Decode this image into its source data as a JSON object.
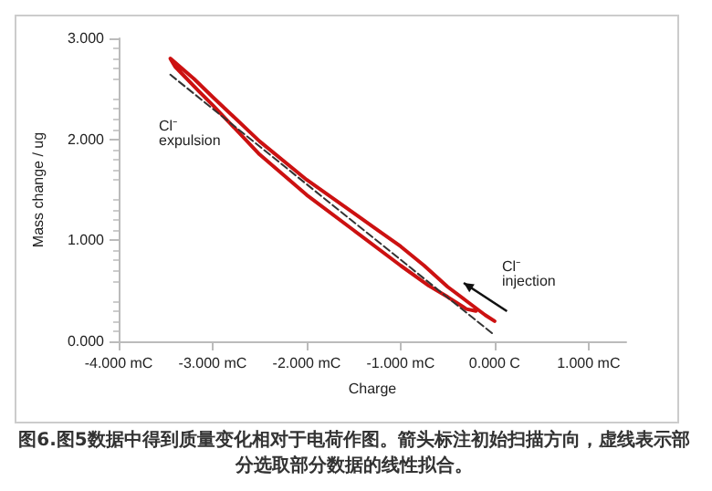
{
  "chart_data": {
    "type": "line",
    "xlabel": "Charge",
    "ylabel": "Mass change / ug",
    "xlim": [
      -4,
      1.4
    ],
    "xticks": [
      {
        "value": -4,
        "label": "-4.000 mC"
      },
      {
        "value": -3,
        "label": "-3.000 mC"
      },
      {
        "value": -2,
        "label": "-2.000 mC"
      },
      {
        "value": -1,
        "label": "-1.000 mC"
      },
      {
        "value": 0,
        "label": "0.000 C"
      },
      {
        "value": 1,
        "label": "1.000 mC"
      }
    ],
    "ylim": [
      0,
      3
    ],
    "yticks": [
      {
        "value": 0,
        "label": "0.000"
      },
      {
        "value": 1,
        "label": "1.000"
      },
      {
        "value": 2,
        "label": "2.000"
      },
      {
        "value": 3,
        "label": "3.000"
      }
    ],
    "marker": "none",
    "series": [
      {
        "color": "#cc1111",
        "line_style": "solid",
        "x": [
          0,
          -0.1,
          -0.3,
          -0.5,
          -0.75,
          -1.0,
          -1.5,
          -2.0,
          -2.5,
          -3.0,
          -3.2,
          -3.45,
          -3.4,
          -3.15,
          -3.0,
          -2.5,
          -2.0,
          -1.5,
          -1.0,
          -0.7,
          -0.5,
          -0.3,
          -0.2
        ],
        "values": [
          0.2,
          0.26,
          0.4,
          0.54,
          0.75,
          0.94,
          1.27,
          1.6,
          1.98,
          2.42,
          2.6,
          2.8,
          2.72,
          2.48,
          2.34,
          1.85,
          1.45,
          1.1,
          0.75,
          0.55,
          0.44,
          0.32,
          0.3
        ]
      },
      {
        "color": "#333333",
        "line_style": "dashed",
        "x": [
          -3.45,
          0
        ],
        "values": [
          2.64,
          0.06
        ]
      }
    ],
    "annotations": [
      "Cl⁻ expulsion",
      "Cl⁻ injection",
      "图6.图5数据中得到质量变化相对于电荷作图。箭头标注初始扫描方向，虚线表示部分选取部分数据的线性拟合。"
    ]
  }
}
